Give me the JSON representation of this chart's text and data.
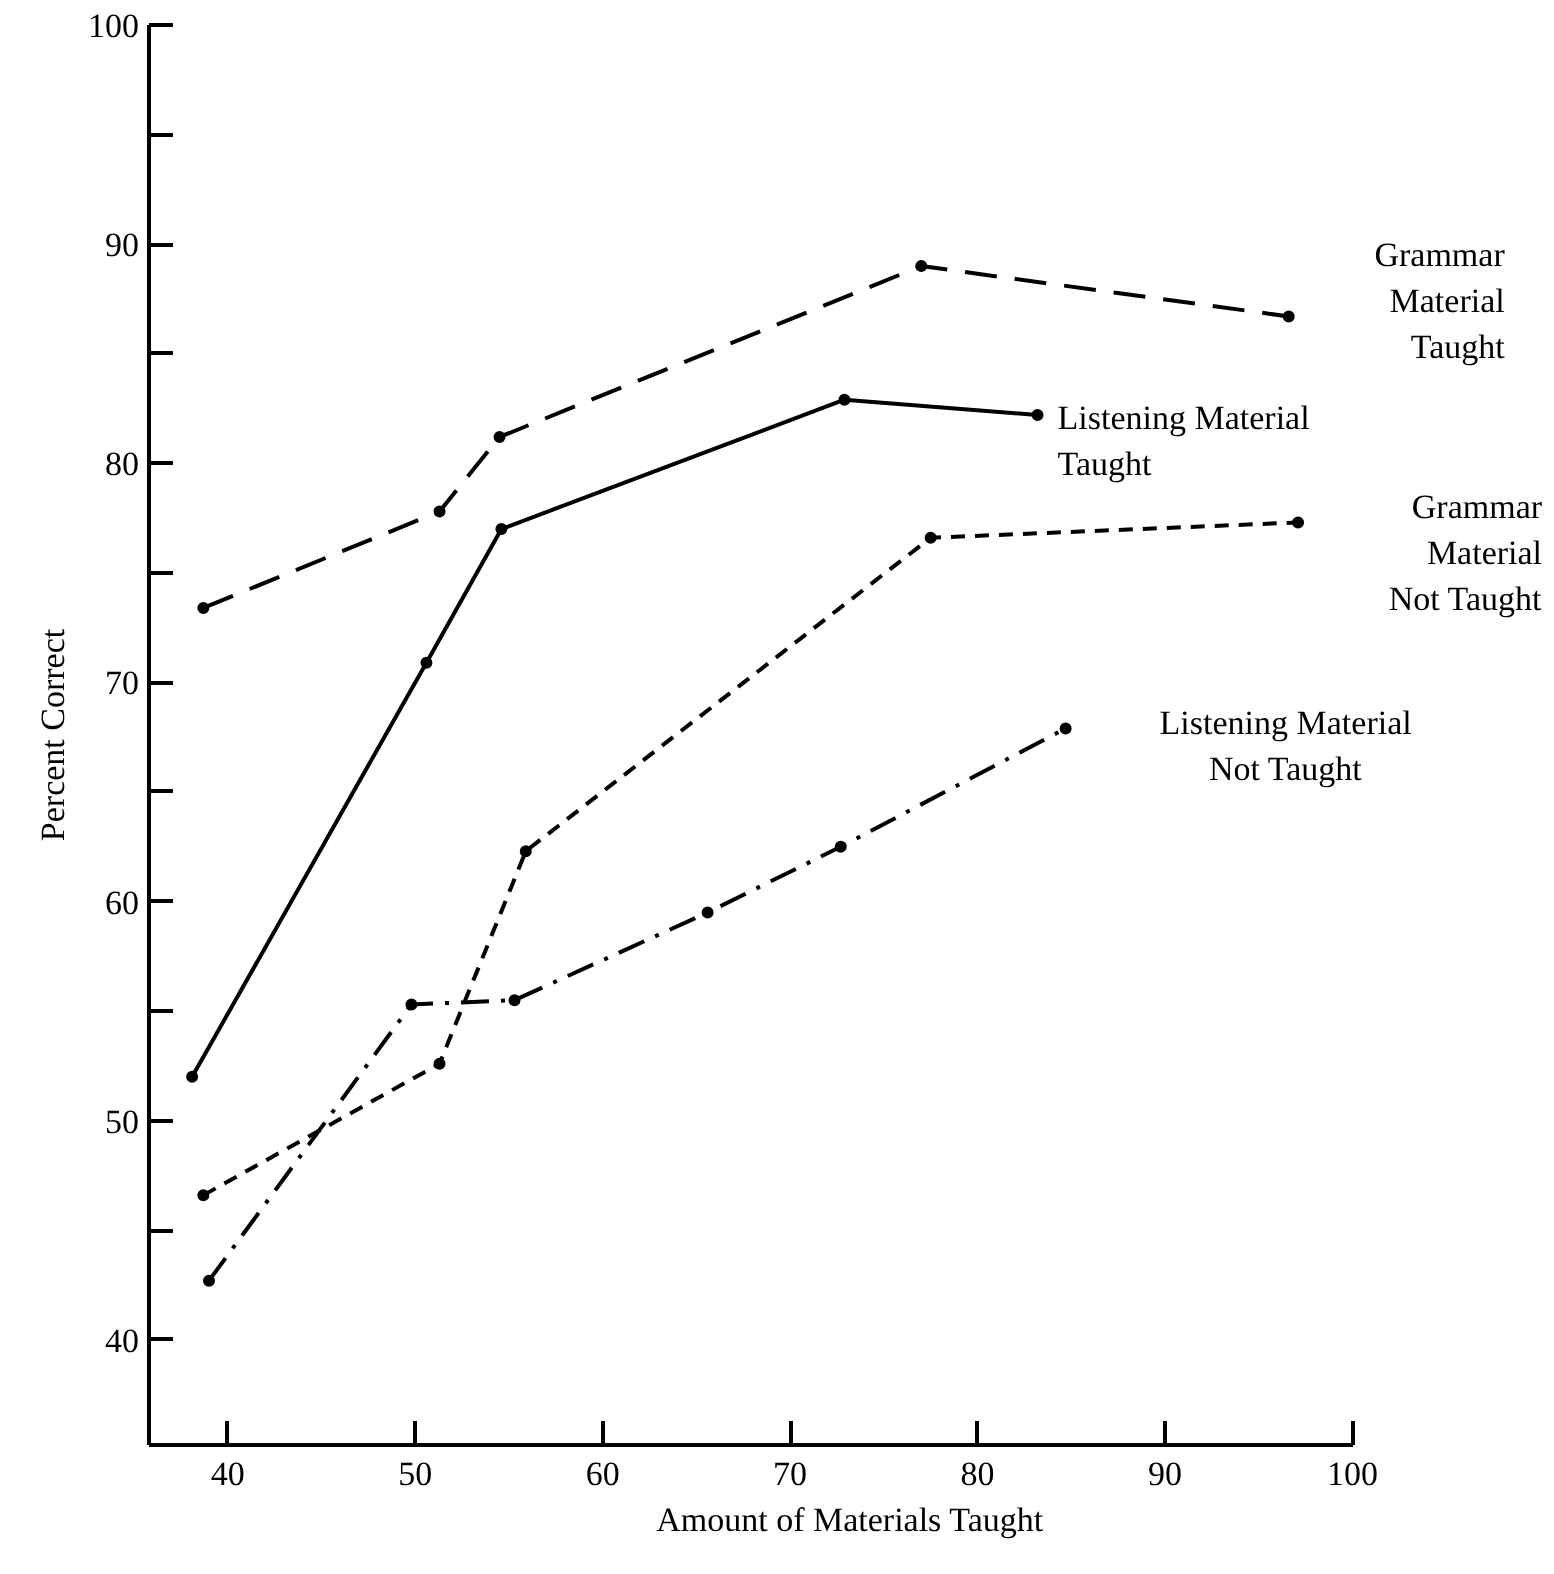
{
  "chart_data": {
    "type": "line",
    "xlabel": "Amount of Materials Taught",
    "ylabel": "Percent Correct",
    "xlim": [
      35.8,
      100
    ],
    "ylim": [
      35.2,
      100
    ],
    "xticks": [
      40,
      50,
      60,
      70,
      80,
      90,
      100
    ],
    "yticks": [
      40,
      {
        "value": 45,
        "label": null
      },
      50,
      {
        "value": 55,
        "label": null
      },
      60,
      {
        "value": 65,
        "label": null
      },
      70,
      {
        "value": 75,
        "label": null
      },
      80,
      {
        "value": 85,
        "label": null
      },
      90,
      {
        "value": 95,
        "label": null
      },
      100
    ],
    "marker": "circle",
    "grid": false,
    "series": [
      {
        "name": "Grammar\nMaterial\nTaught",
        "color": "#000000",
        "line_style": "longdash",
        "x": [
          38.7,
          51.3,
          54.5,
          77.0,
          96.6
        ],
        "values": [
          73.4,
          77.8,
          81.2,
          89.0,
          86.7
        ]
      },
      {
        "name": "Listening Material\nTaught",
        "color": "#000000",
        "line_style": "solid",
        "x": [
          38.1,
          50.6,
          54.6,
          72.9,
          83.2
        ],
        "values": [
          52.0,
          70.9,
          77.0,
          82.9,
          82.2
        ]
      },
      {
        "name": "Grammar\nMaterial\nNot Taught",
        "color": "#000000",
        "line_style": "dashed",
        "x": [
          38.7,
          51.3,
          55.9,
          77.5,
          97.1
        ],
        "values": [
          46.6,
          52.6,
          62.3,
          76.6,
          77.3
        ]
      },
      {
        "name": "Listening Material\nNot Taught",
        "color": "#000000",
        "line_style": "dashdot",
        "x": [
          39.0,
          49.8,
          55.3,
          65.6,
          72.7,
          84.7
        ],
        "values": [
          42.7,
          55.3,
          55.5,
          59.5,
          62.5,
          67.9
        ]
      }
    ]
  }
}
